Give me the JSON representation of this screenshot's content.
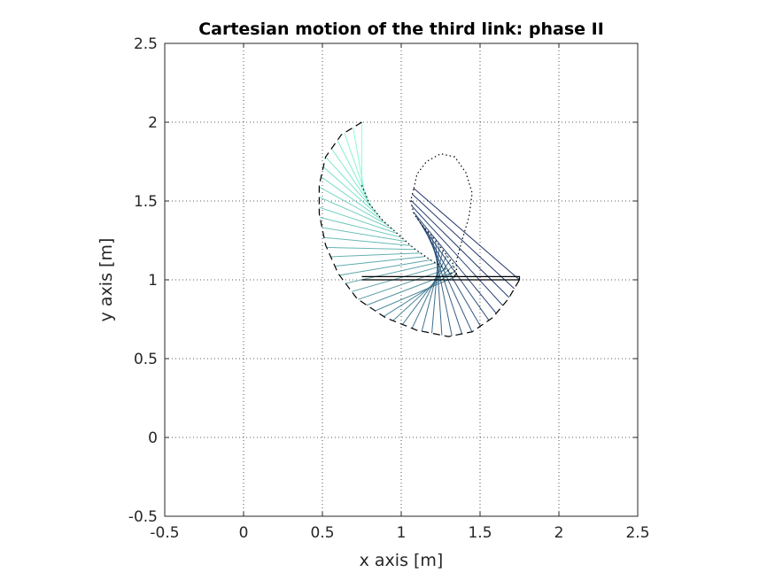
{
  "chart_data": {
    "type": "line",
    "title": "Cartesian motion of the third link: phase II",
    "xlabel": "x axis [m]",
    "ylabel": "y axis [m]",
    "xlim": [
      -0.5,
      2.5
    ],
    "ylim": [
      -0.5,
      2.5
    ],
    "xticks": [
      "-0.5",
      "0",
      "0.5",
      "1",
      "1.5",
      "2",
      "2.5"
    ],
    "yticks": [
      "-0.5",
      "0",
      "0.5",
      "1",
      "1.5",
      "2",
      "2.5"
    ],
    "grid": true,
    "aspect": "equal",
    "link_start_color": "#7fffd4",
    "link_end_color": "#0b1f5e",
    "link_samples": 40,
    "series": [
      {
        "style": "dashed",
        "color": "#000000",
        "points": [
          [
            0.75,
            2.0
          ],
          [
            0.62,
            1.92
          ],
          [
            0.52,
            1.78
          ],
          [
            0.48,
            1.6
          ],
          [
            0.48,
            1.42
          ],
          [
            0.52,
            1.22
          ],
          [
            0.6,
            1.04
          ],
          [
            0.72,
            0.88
          ],
          [
            0.9,
            0.76
          ],
          [
            1.1,
            0.68
          ],
          [
            1.3,
            0.64
          ],
          [
            1.45,
            0.67
          ],
          [
            1.58,
            0.76
          ],
          [
            1.68,
            0.88
          ],
          [
            1.75,
            1.0
          ]
        ]
      },
      {
        "style": "dotted",
        "color": "#000000",
        "points": [
          [
            0.75,
            1.6
          ],
          [
            0.8,
            1.48
          ],
          [
            0.88,
            1.38
          ],
          [
            0.98,
            1.29
          ],
          [
            1.08,
            1.2
          ],
          [
            1.18,
            1.13
          ],
          [
            1.28,
            1.07
          ],
          [
            1.35,
            1.02
          ],
          [
            1.33,
            1.1
          ],
          [
            1.27,
            1.18
          ],
          [
            1.2,
            1.27
          ],
          [
            1.13,
            1.35
          ],
          [
            1.08,
            1.42
          ],
          [
            1.06,
            1.5
          ],
          [
            1.08,
            1.58
          ]
        ]
      },
      {
        "style": "dotted",
        "color": "#000000",
        "points": [
          [
            1.08,
            1.58
          ],
          [
            1.1,
            1.67
          ],
          [
            1.16,
            1.75
          ],
          [
            1.25,
            1.8
          ],
          [
            1.34,
            1.78
          ],
          [
            1.41,
            1.68
          ],
          [
            1.45,
            1.55
          ],
          [
            1.43,
            1.4
          ],
          [
            1.38,
            1.23
          ],
          [
            1.35,
            1.12
          ],
          [
            1.35,
            1.02
          ]
        ]
      },
      {
        "style": "solid",
        "color": "#000000",
        "points": [
          [
            0.75,
            1.0
          ],
          [
            1.75,
            1.0
          ],
          [
            1.75,
            1.02
          ],
          [
            0.75,
            1.02
          ]
        ]
      }
    ]
  }
}
